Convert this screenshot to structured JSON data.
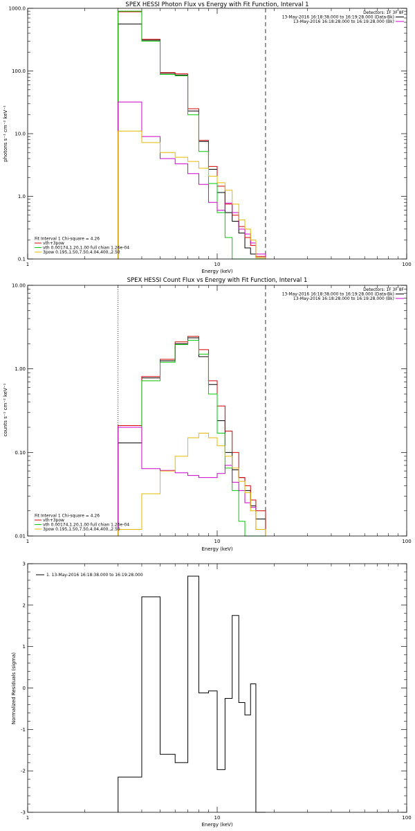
{
  "chart_data": [
    {
      "type": "line",
      "step": true,
      "title": "SPEX HESSI Photon Flux vs Energy with Fit Function, Interval 1",
      "xlabel": "Energy (keV)",
      "ylabel": "photons s⁻¹ cm⁻² keV⁻¹",
      "xscale": "log",
      "yscale": "log",
      "xlim": [
        1,
        100
      ],
      "ylim": [
        0.1,
        1000
      ],
      "xticks": [
        {
          "v": 1,
          "label": "1"
        },
        {
          "v": 10,
          "label": "10"
        },
        {
          "v": 100,
          "label": "100"
        }
      ],
      "yticks": [
        {
          "v": 0.1,
          "label": "0.1"
        },
        {
          "v": 1,
          "label": "1.0"
        },
        {
          "v": 10,
          "label": "10.0"
        },
        {
          "v": 100,
          "label": "100.0"
        },
        {
          "v": 1000,
          "label": "1000.0"
        }
      ],
      "vlines": [
        {
          "x": 3.0,
          "style": "dotted"
        },
        {
          "x": 18.0,
          "style": "dashed"
        }
      ],
      "info_lines": [
        {
          "text": "Detectors: 1F 3F 8F",
          "color": "#000000"
        },
        {
          "text": "13-May-2016 16:18:38.000 to 16:19:28.000 (Data-Bk)",
          "color": "#000000"
        },
        {
          "text": "13-May-2016 16:18:28.000 to 16:19:28.000 (Bk)",
          "color": "#cc00cc"
        }
      ],
      "legend_title": "Fit Interval 1   Chi-square = 4.26",
      "legend": [
        {
          "text": "vth+3pow",
          "color": "#d40000"
        },
        {
          "text": "vth 0.00174,1.20,1.00  full chian 1.26e-04",
          "color": "#00c800"
        },
        {
          "text": "3pow 0.195,1.50,7.50,4.04,400.,2.50",
          "color": "#e6b800"
        }
      ],
      "bin_edges": [
        3.0,
        4.0,
        5.0,
        6.0,
        7.0,
        8.0,
        9.0,
        10.0,
        11.0,
        12.0,
        13.0,
        14.0,
        15.0,
        16.0,
        18.0
      ],
      "series": [
        {
          "color": "#000000",
          "values": [
            560,
            310,
            92,
            86,
            23,
            7.5,
            2.7,
            1.15,
            0.55,
            0.4,
            0.26,
            0.15,
            0.12,
            0.105
          ]
        },
        {
          "color": "#d40000",
          "values": [
            880,
            320,
            94,
            90,
            25,
            7.8,
            3.0,
            1.45,
            0.75,
            0.5,
            0.33,
            0.22,
            0.165,
            0.11
          ]
        },
        {
          "color": "#00c800",
          "values": [
            900,
            300,
            88,
            84,
            20,
            5.2,
            1.6,
            0.55,
            0.22,
            0.1,
            0.1,
            0.1,
            0.1,
            0.1
          ]
        },
        {
          "color": "#cc00cc",
          "values": [
            32,
            9,
            4.0,
            3.3,
            2.3,
            1.55,
            0.8,
            0.6,
            0.78,
            0.55,
            0.3,
            0.25,
            0.18,
            0.12
          ]
        },
        {
          "color": "#e6b800",
          "values": [
            11,
            7.2,
            5.0,
            4.2,
            3.6,
            2.8,
            2.1,
            1.65,
            1.25,
            0.75,
            0.42,
            0.3,
            0.2,
            0.105
          ]
        }
      ]
    },
    {
      "type": "line",
      "step": true,
      "title": "SPEX HESSI Count Flux vs Energy with Fit Function, Interval 1",
      "xlabel": "Energy (keV)",
      "ylabel": "counts s⁻¹ cm⁻² keV⁻¹",
      "xscale": "log",
      "yscale": "log",
      "xlim": [
        1,
        100
      ],
      "ylim": [
        0.01,
        10
      ],
      "xticks": [
        {
          "v": 1,
          "label": "1"
        },
        {
          "v": 10,
          "label": "10"
        },
        {
          "v": 100,
          "label": "100"
        }
      ],
      "yticks": [
        {
          "v": 0.01,
          "label": "0.01"
        },
        {
          "v": 0.1,
          "label": "0.10"
        },
        {
          "v": 1,
          "label": "1.00"
        },
        {
          "v": 10,
          "label": "10.00"
        }
      ],
      "vlines": [
        {
          "x": 3.0,
          "style": "dotted"
        },
        {
          "x": 18.0,
          "style": "dashed"
        }
      ],
      "info_lines": [
        {
          "text": "Detectors: 1F 3F 8F",
          "color": "#000000"
        },
        {
          "text": "13-May-2016 16:18:38.000 to 16:19:28.000 (Data-Bk)",
          "color": "#000000"
        },
        {
          "text": "13-May-2016 16:18:28.000 to 16:19:28.000 (Bk)",
          "color": "#cc00cc"
        }
      ],
      "legend_title": "Fit Interval 1   Chi-square = 4.26",
      "legend": [
        {
          "text": "vth+3pow",
          "color": "#d40000"
        },
        {
          "text": "vth 0.00174,1.20,1.00  full chian 1.26e-04",
          "color": "#00c800"
        },
        {
          "text": "3pow 0.195,1.50,7.50,4.04,400.,2.50",
          "color": "#e6b800"
        }
      ],
      "bin_edges": [
        3.0,
        4.0,
        5.0,
        6.0,
        7.0,
        8.0,
        9.0,
        10.0,
        11.0,
        12.0,
        13.0,
        14.0,
        15.0,
        16.0,
        18.0
      ],
      "series": [
        {
          "color": "#000000",
          "values": [
            0.13,
            0.78,
            1.25,
            2.0,
            2.35,
            1.4,
            0.65,
            0.24,
            0.1,
            0.062,
            0.05,
            0.035,
            0.023,
            0.016
          ]
        },
        {
          "color": "#d40000",
          "values": [
            0.21,
            0.81,
            1.3,
            2.1,
            2.45,
            1.7,
            0.72,
            0.36,
            0.18,
            0.1,
            0.05,
            0.04,
            0.027,
            0.02
          ]
        },
        {
          "color": "#00c800",
          "values": [
            0.2,
            0.72,
            1.2,
            1.95,
            2.2,
            1.5,
            0.5,
            0.17,
            0.065,
            0.035,
            0.015,
            0.01,
            0.01,
            0.01
          ]
        },
        {
          "color": "#cc00cc",
          "values": [
            0.2,
            0.064,
            0.061,
            0.057,
            0.053,
            0.05,
            0.05,
            0.056,
            0.07,
            0.044,
            0.035,
            0.025,
            0.022,
            0.012
          ]
        },
        {
          "color": "#e6b800",
          "values": [
            0.012,
            0.032,
            0.06,
            0.09,
            0.15,
            0.17,
            0.15,
            0.12,
            0.09,
            0.065,
            0.045,
            0.033,
            0.02,
            0.012
          ]
        }
      ]
    },
    {
      "type": "line",
      "step": true,
      "title": "",
      "xlabel": "Energy (keV)",
      "ylabel": "Normalized Residuals (sigma)",
      "xscale": "log",
      "yscale": "linear",
      "xlim": [
        1,
        100
      ],
      "ylim": [
        -3,
        3
      ],
      "xticks": [
        {
          "v": 1,
          "label": "1"
        },
        {
          "v": 10,
          "label": "10"
        },
        {
          "v": 100,
          "label": "100"
        }
      ],
      "yticks": [
        {
          "v": -3,
          "label": "-3"
        },
        {
          "v": -2,
          "label": "-2"
        },
        {
          "v": -1,
          "label": "-1"
        },
        {
          "v": 0,
          "label": "0"
        },
        {
          "v": 1,
          "label": "1"
        },
        {
          "v": 2,
          "label": "2"
        },
        {
          "v": 3,
          "label": "3"
        }
      ],
      "vlines": [],
      "info_lines": [],
      "legend_title": "",
      "legend": [
        {
          "text": "1. 13-May-2016 16:18:38.000 to 16:19:28.000",
          "color": "#000000"
        }
      ],
      "bin_edges": [
        3.0,
        4.0,
        5.0,
        6.0,
        7.0,
        8.0,
        9.0,
        10.0,
        11.0,
        12.0,
        13.0,
        14.0,
        15.0,
        16.0,
        18.0
      ],
      "series": [
        {
          "color": "#000000",
          "values": [
            -2.15,
            2.2,
            -1.6,
            -1.8,
            2.7,
            -0.12,
            -0.07,
            -1.97,
            -0.25,
            1.75,
            -0.35,
            -0.65,
            0.1,
            -3.0
          ]
        }
      ]
    }
  ]
}
